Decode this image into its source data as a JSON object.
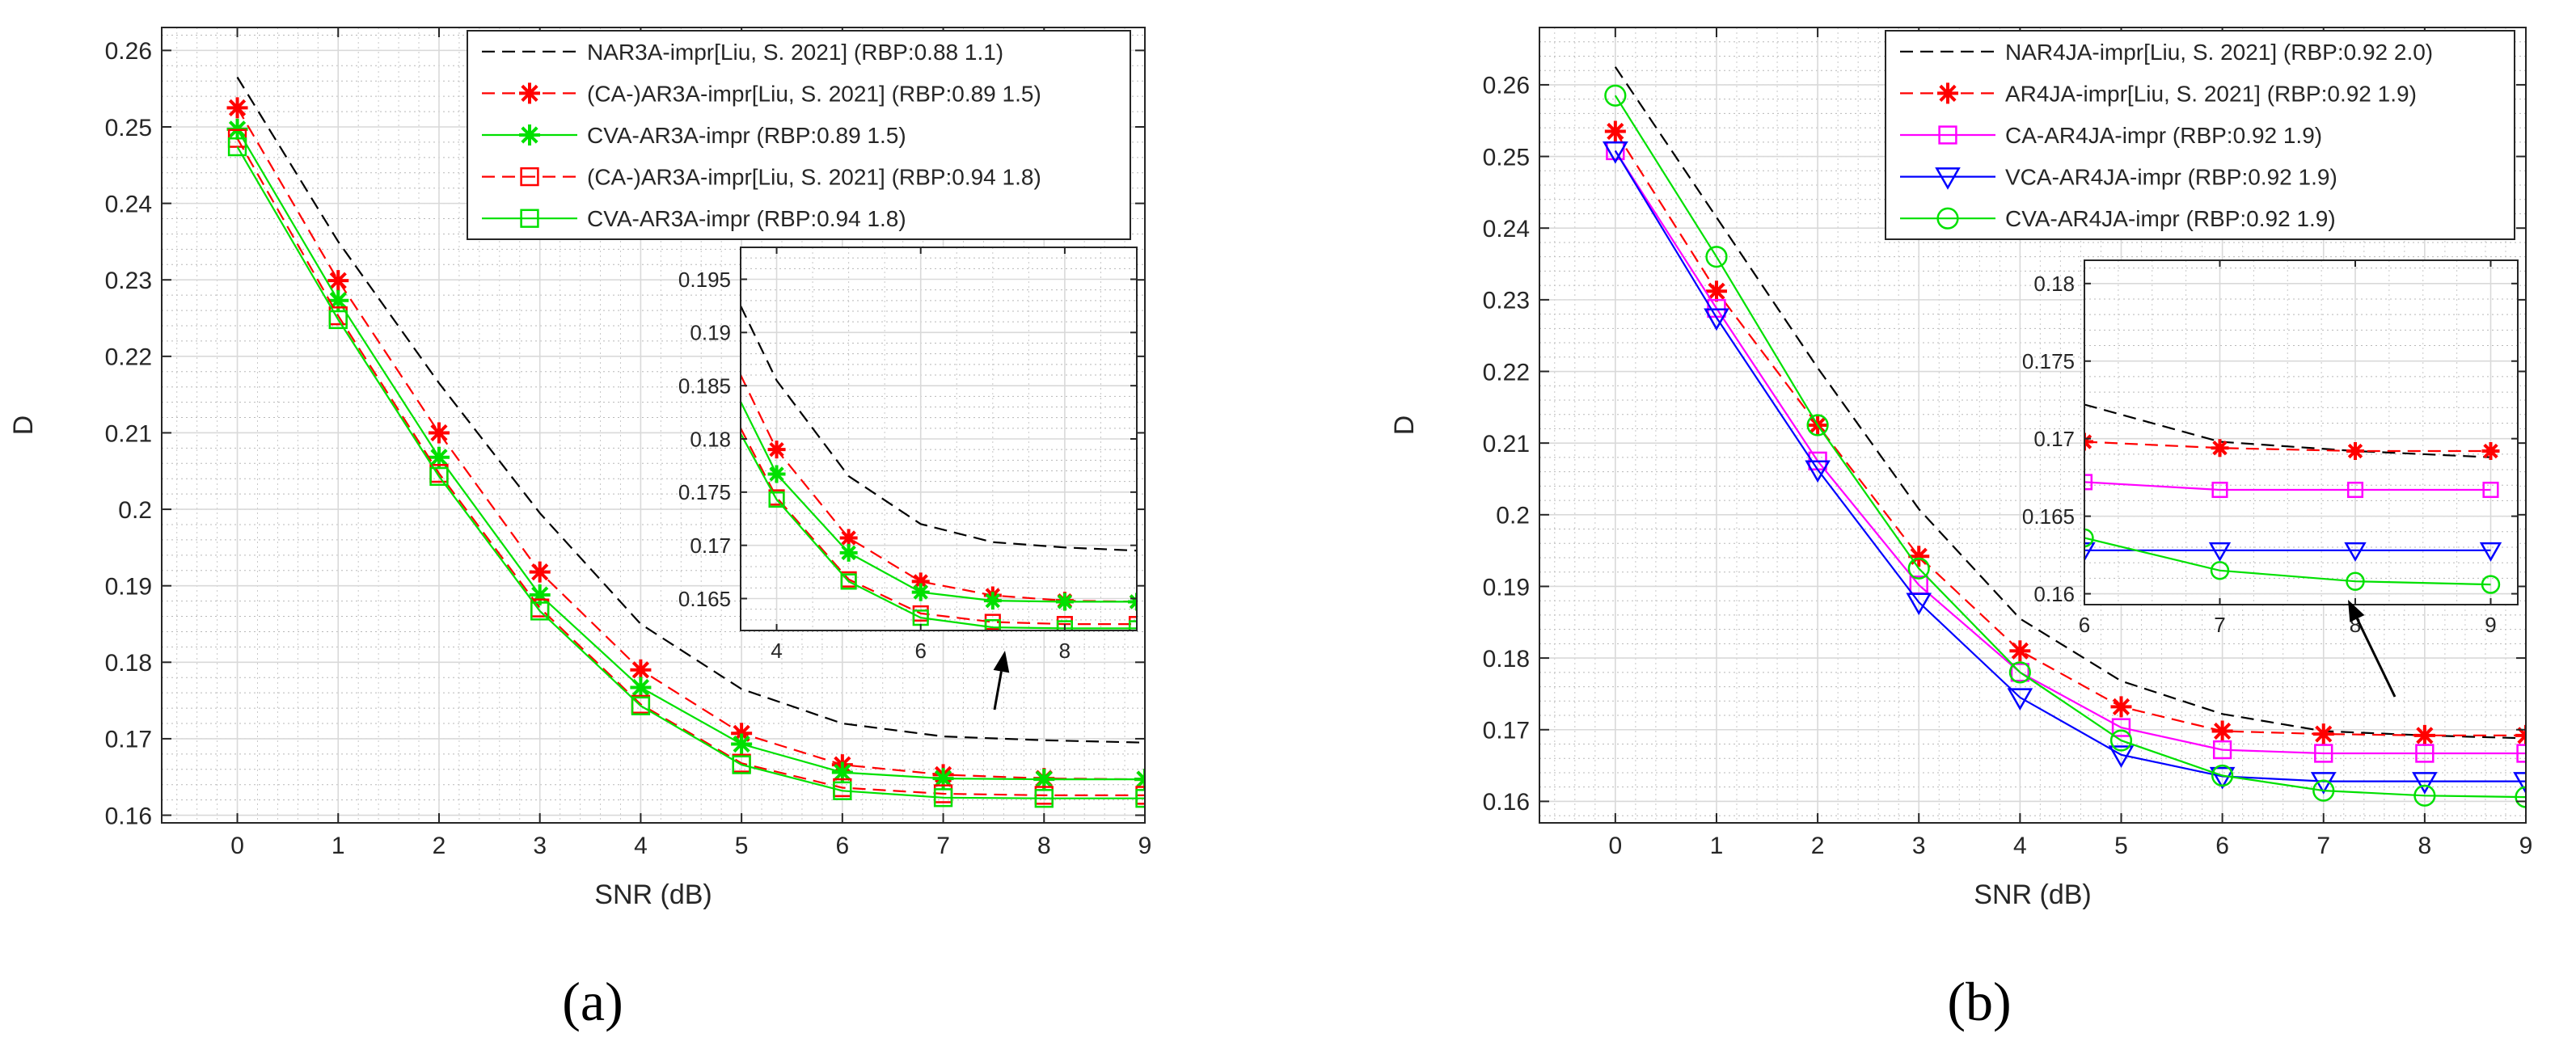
{
  "captions": [
    "(a)",
    "(b)"
  ],
  "chart_data": [
    {
      "type": "line",
      "panel": "a",
      "xlabel": "SNR (dB)",
      "ylabel": "D",
      "xlim": [
        -0.75,
        9
      ],
      "ylim": [
        0.159,
        0.263
      ],
      "xticks": [
        0,
        1,
        2,
        3,
        4,
        5,
        6,
        7,
        8,
        9
      ],
      "xtick_labels": [
        "0",
        "1",
        "2",
        "3",
        "4",
        "5",
        "6",
        "7",
        "8",
        "9"
      ],
      "yticks": [
        0.16,
        0.17,
        0.18,
        0.19,
        0.2,
        0.21,
        0.22,
        0.23,
        0.24,
        0.25,
        0.26
      ],
      "ytick_labels": [
        "0.16",
        "0.17",
        "0.18",
        "0.19",
        "0.2",
        "0.21",
        "0.22",
        "0.23",
        "0.24",
        "0.25",
        "0.26"
      ],
      "grid": true,
      "legend_position": "top-right",
      "x": [
        0,
        1,
        2,
        3,
        4,
        5,
        6,
        7,
        8,
        9
      ],
      "series": [
        {
          "name": "NAR3A-impr[Liu, S. 2021] (RBP:0.88 1.1)",
          "color": "#000000",
          "line": "dashed",
          "marker": "none",
          "values": [
            0.2565,
            0.235,
            0.2165,
            0.1995,
            0.185,
            0.1765,
            0.172,
            0.1703,
            0.1698,
            0.1695
          ]
        },
        {
          "name": "(CA-)AR3A-impr[Liu, S. 2021] (RBP:0.89 1.5)",
          "color": "#ff0000",
          "line": "dashed",
          "marker": "star",
          "values": [
            0.2525,
            0.2299,
            0.21,
            0.1918,
            0.179,
            0.1707,
            0.1666,
            0.1653,
            0.1648,
            0.1647
          ]
        },
        {
          "name": "CVA-AR3A-impr (RBP:0.89 1.5)",
          "color": "#00e000",
          "line": "solid",
          "marker": "star",
          "values": [
            0.2497,
            0.2273,
            0.2068,
            0.1888,
            0.1767,
            0.1693,
            0.1656,
            0.1648,
            0.1647,
            0.1647
          ]
        },
        {
          "name": "(CA-)AR3A-impr[Liu, S. 2021] (RBP:0.94 1.8)",
          "color": "#ff0000",
          "line": "dashed",
          "marker": "square",
          "values": [
            0.2485,
            0.2253,
            0.2047,
            0.1871,
            0.1745,
            0.1668,
            0.1636,
            0.1628,
            0.1626,
            0.1626
          ]
        },
        {
          "name": "CVA-AR3A-impr (RBP:0.94 1.8)",
          "color": "#00e000",
          "line": "solid",
          "marker": "square",
          "values": [
            0.2474,
            0.2248,
            0.2043,
            0.1867,
            0.1743,
            0.1666,
            0.1632,
            0.1623,
            0.1622,
            0.1622
          ]
        }
      ],
      "inset": {
        "xlim": [
          3.5,
          9
        ],
        "ylim": [
          0.162,
          0.198
        ],
        "xticks": [
          4,
          6,
          8
        ],
        "xtick_labels": [
          "4",
          "6",
          "8"
        ],
        "yticks": [
          0.165,
          0.17,
          0.175,
          0.18,
          0.185,
          0.19,
          0.195
        ],
        "ytick_labels": [
          "0.165",
          "0.17",
          "0.175",
          "0.18",
          "0.185",
          "0.19",
          "0.195"
        ],
        "x": [
          4,
          5,
          6,
          7,
          8,
          9
        ],
        "series": [
          {
            "name": "NAR3A-impr[Liu, S. 2021] (RBP:0.88 1.1)",
            "color": "#000000",
            "line": "dashed",
            "marker": "none",
            "values": [
              0.1855,
              0.1765,
              0.172,
              0.1703,
              0.1698,
              0.1695
            ],
            "x_start": 3.5,
            "y_start": 0.1925
          },
          {
            "name": "(CA-)AR3A-impr[Liu, S. 2021] (RBP:0.89 1.5)",
            "color": "#ff0000",
            "line": "dashed",
            "marker": "star",
            "values": [
              0.179,
              0.1707,
              0.1666,
              0.1653,
              0.1648,
              0.1647
            ],
            "x_start": 3.5,
            "y_start": 0.186
          },
          {
            "name": "CVA-AR3A-impr (RBP:0.89 1.5)",
            "color": "#00e000",
            "line": "solid",
            "marker": "star",
            "values": [
              0.1767,
              0.1693,
              0.1656,
              0.1648,
              0.1647,
              0.1647
            ],
            "x_start": 3.5,
            "y_start": 0.1835
          },
          {
            "name": "(CA-)AR3A-impr[Liu, S. 2021] (RBP:0.94 1.8)",
            "color": "#ff0000",
            "line": "dashed",
            "marker": "square",
            "values": [
              0.1745,
              0.1668,
              0.1636,
              0.1628,
              0.1626,
              0.1626
            ],
            "x_start": 3.5,
            "y_start": 0.181
          },
          {
            "name": "CVA-AR3A-impr (RBP:0.94 1.8)",
            "color": "#00e000",
            "line": "solid",
            "marker": "square",
            "values": [
              0.1743,
              0.1666,
              0.1632,
              0.1623,
              0.1622,
              0.1622
            ],
            "x_start": 3.5,
            "y_start": 0.1805
          }
        ]
      }
    },
    {
      "type": "line",
      "panel": "b",
      "xlabel": "SNR (dB)",
      "ylabel": "D",
      "xlim": [
        -0.75,
        9
      ],
      "ylim": [
        0.157,
        0.268
      ],
      "xticks": [
        0,
        1,
        2,
        3,
        4,
        5,
        6,
        7,
        8,
        9
      ],
      "xtick_labels": [
        "0",
        "1",
        "2",
        "3",
        "4",
        "5",
        "6",
        "7",
        "8",
        "9"
      ],
      "yticks": [
        0.16,
        0.17,
        0.18,
        0.19,
        0.2,
        0.21,
        0.22,
        0.23,
        0.24,
        0.25,
        0.26
      ],
      "ytick_labels": [
        "0.16",
        "0.17",
        "0.18",
        "0.19",
        "0.2",
        "0.21",
        "0.22",
        "0.23",
        "0.24",
        "0.25",
        "0.26"
      ],
      "grid": true,
      "legend_position": "top-right",
      "x": [
        0,
        1,
        2,
        3,
        4,
        5,
        6,
        7,
        8,
        9
      ],
      "series": [
        {
          "name": "NAR4JA-impr[Liu, S. 2021] (RBP:0.92 2.0)",
          "color": "#000000",
          "line": "dashed",
          "marker": "none",
          "values": [
            0.2625,
            0.2415,
            0.2205,
            0.2008,
            0.1855,
            0.1768,
            0.1722,
            0.1698,
            0.1692,
            0.1688
          ]
        },
        {
          "name": "AR4JA-impr[Liu, S. 2021] (RBP:0.92 1.9)",
          "color": "#ff0000",
          "line": "dashed",
          "marker": "star",
          "values": [
            0.2535,
            0.2312,
            0.2125,
            0.1942,
            0.181,
            0.1732,
            0.1698,
            0.1694,
            0.1692,
            0.1692
          ]
        },
        {
          "name": "CA-AR4JA-impr (RBP:0.92 1.9)",
          "color": "#ff00ff",
          "line": "solid",
          "marker": "square",
          "values": [
            0.2508,
            0.2288,
            0.2075,
            0.1902,
            0.178,
            0.1703,
            0.1672,
            0.1667,
            0.1667,
            0.1667
          ]
        },
        {
          "name": "VCA-AR4JA-impr (RBP:0.92 1.9)",
          "color": "#0000ff",
          "line": "solid",
          "marker": "triangle-down",
          "values": [
            0.2508,
            0.2275,
            0.2063,
            0.1878,
            0.1745,
            0.1665,
            0.1635,
            0.1628,
            0.1628,
            0.1628
          ]
        },
        {
          "name": "CVA-AR4JA-impr (RBP:0.92 1.9)",
          "color": "#00e000",
          "line": "solid",
          "marker": "circle",
          "values": [
            0.2585,
            0.236,
            0.2125,
            0.1925,
            0.178,
            0.1685,
            0.1636,
            0.1615,
            0.1608,
            0.1606
          ]
        }
      ],
      "inset": {
        "xlim": [
          6,
          9.2
        ],
        "ylim": [
          0.1593,
          0.1815
        ],
        "xticks": [
          6,
          7,
          8,
          9
        ],
        "xtick_labels": [
          "6",
          "7",
          "8",
          "9"
        ],
        "yticks": [
          0.16,
          0.165,
          0.17,
          0.175,
          0.18
        ],
        "ytick_labels": [
          "0.16",
          "0.165",
          "0.17",
          "0.175",
          "0.18"
        ],
        "x": [
          6,
          7,
          8,
          9
        ],
        "series": [
          {
            "name": "NAR4JA-impr[Liu, S. 2021] (RBP:0.92 2.0)",
            "color": "#000000",
            "line": "dashed",
            "marker": "none",
            "values": [
              0.1722,
              0.1698,
              0.1692,
              0.1688
            ]
          },
          {
            "name": "AR4JA-impr[Liu, S. 2021] (RBP:0.92 1.9)",
            "color": "#ff0000",
            "line": "dashed",
            "marker": "star",
            "values": [
              0.1698,
              0.1694,
              0.1692,
              0.1692
            ]
          },
          {
            "name": "CA-AR4JA-impr (RBP:0.92 1.9)",
            "color": "#ff00ff",
            "line": "solid",
            "marker": "square",
            "values": [
              0.1672,
              0.1667,
              0.1667,
              0.1667
            ]
          },
          {
            "name": "VCA-AR4JA-impr (RBP:0.92 1.9)",
            "color": "#0000ff",
            "line": "solid",
            "marker": "triangle-down",
            "values": [
              0.1628,
              0.1628,
              0.1628,
              0.1628
            ]
          },
          {
            "name": "CVA-AR4JA-impr (RBP:0.92 1.9)",
            "color": "#00e000",
            "line": "solid",
            "marker": "circle",
            "values": [
              0.1636,
              0.1615,
              0.1608,
              0.1606
            ]
          }
        ]
      }
    }
  ]
}
